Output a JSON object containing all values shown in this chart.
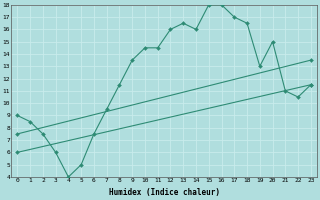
{
  "line1_x": [
    0,
    1,
    2,
    3,
    4,
    5,
    6,
    7,
    8,
    9,
    10,
    11,
    12,
    13,
    14,
    15,
    16,
    17,
    18,
    19,
    20,
    21,
    22,
    23
  ],
  "line1_y": [
    9.0,
    8.5,
    7.5,
    6.0,
    4.0,
    5.0,
    7.5,
    9.5,
    11.5,
    13.5,
    14.5,
    14.5,
    16.0,
    16.5,
    16.0,
    18.0,
    18.0,
    17.0,
    16.5,
    13.0,
    15.0,
    11.0,
    10.5,
    11.5
  ],
  "line2_x": [
    0,
    23
  ],
  "line2_y": [
    7.5,
    13.5
  ],
  "line3_x": [
    0,
    23
  ],
  "line3_y": [
    6.0,
    11.5
  ],
  "color": "#2e8b74",
  "bg_color": "#b0dede",
  "grid_color": "#d0f0f0",
  "xlabel": "Humidex (Indice chaleur)",
  "ylim": [
    4,
    18
  ],
  "xlim": [
    -0.5,
    23.5
  ],
  "yticks": [
    4,
    5,
    6,
    7,
    8,
    9,
    10,
    11,
    12,
    13,
    14,
    15,
    16,
    17,
    18
  ],
  "xticks": [
    0,
    1,
    2,
    3,
    4,
    5,
    6,
    7,
    8,
    9,
    10,
    11,
    12,
    13,
    14,
    15,
    16,
    17,
    18,
    19,
    20,
    21,
    22,
    23
  ],
  "marker": "D",
  "markersize": 2.0,
  "linewidth": 0.8
}
